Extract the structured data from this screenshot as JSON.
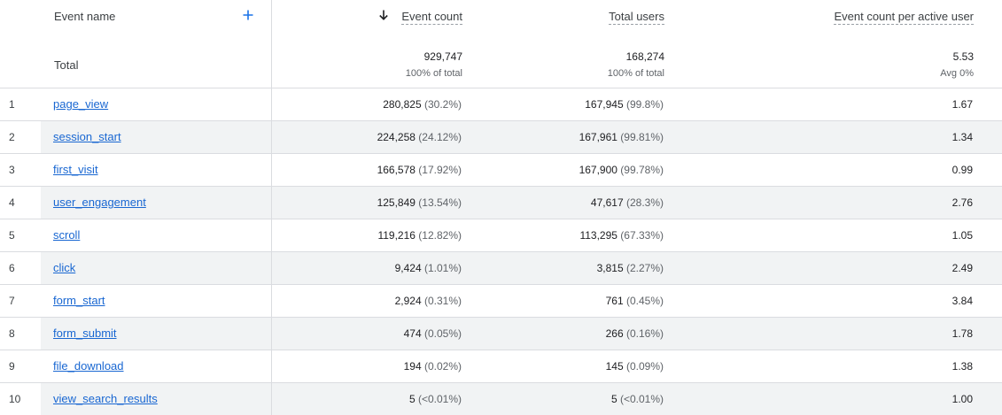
{
  "header": {
    "dimension_label": "Event name",
    "total_label": "Total",
    "add_icon": "plus-icon",
    "sort_icon": "arrow-down-icon",
    "metrics": [
      {
        "label": "Event count",
        "total": "929,747",
        "sub": "100% of total"
      },
      {
        "label": "Total users",
        "total": "168,274",
        "sub": "100% of total"
      },
      {
        "label": "Event count per active user",
        "total": "5.53",
        "sub": "Avg 0%"
      }
    ]
  },
  "rows": [
    {
      "rank": "1",
      "name": "page_view",
      "event_count": "280,825",
      "event_count_pct": "(30.2%)",
      "total_users": "167,945",
      "total_users_pct": "(99.8%)",
      "per_user": "1.67"
    },
    {
      "rank": "2",
      "name": "session_start",
      "event_count": "224,258",
      "event_count_pct": "(24.12%)",
      "total_users": "167,961",
      "total_users_pct": "(99.81%)",
      "per_user": "1.34"
    },
    {
      "rank": "3",
      "name": "first_visit",
      "event_count": "166,578",
      "event_count_pct": "(17.92%)",
      "total_users": "167,900",
      "total_users_pct": "(99.78%)",
      "per_user": "0.99"
    },
    {
      "rank": "4",
      "name": "user_engagement",
      "event_count": "125,849",
      "event_count_pct": "(13.54%)",
      "total_users": "47,617",
      "total_users_pct": "(28.3%)",
      "per_user": "2.76"
    },
    {
      "rank": "5",
      "name": "scroll",
      "event_count": "119,216",
      "event_count_pct": "(12.82%)",
      "total_users": "113,295",
      "total_users_pct": "(67.33%)",
      "per_user": "1.05"
    },
    {
      "rank": "6",
      "name": "click",
      "event_count": "9,424",
      "event_count_pct": "(1.01%)",
      "total_users": "3,815",
      "total_users_pct": "(2.27%)",
      "per_user": "2.49"
    },
    {
      "rank": "7",
      "name": "form_start",
      "event_count": "2,924",
      "event_count_pct": "(0.31%)",
      "total_users": "761",
      "total_users_pct": "(0.45%)",
      "per_user": "3.84"
    },
    {
      "rank": "8",
      "name": "form_submit",
      "event_count": "474",
      "event_count_pct": "(0.05%)",
      "total_users": "266",
      "total_users_pct": "(0.16%)",
      "per_user": "1.78"
    },
    {
      "rank": "9",
      "name": "file_download",
      "event_count": "194",
      "event_count_pct": "(0.02%)",
      "total_users": "145",
      "total_users_pct": "(0.09%)",
      "per_user": "1.38"
    },
    {
      "rank": "10",
      "name": "view_search_results",
      "event_count": "5",
      "event_count_pct": "(<0.01%)",
      "total_users": "5",
      "total_users_pct": "(<0.01%)",
      "per_user": "1.00"
    }
  ]
}
